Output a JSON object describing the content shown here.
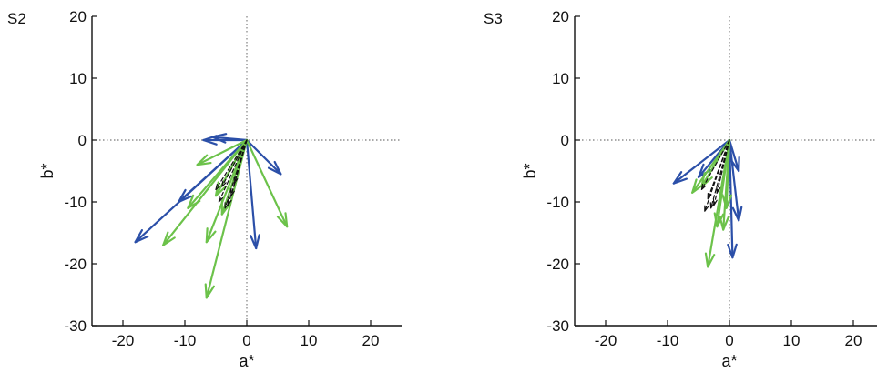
{
  "chart_data": [
    {
      "type": "vector",
      "panel_label": "S2",
      "xlabel": "a*",
      "ylabel": "b*",
      "xlim": [
        -25,
        25
      ],
      "ylim": [
        -30,
        20
      ],
      "xticks": [
        "-20",
        "-10",
        "0",
        "10",
        "20"
      ],
      "yticks": [
        "20",
        "10",
        "0",
        "-10",
        "-20",
        "-30"
      ],
      "reference_lines": {
        "x": 0,
        "y": 0,
        "style": "dotted"
      },
      "series": [
        {
          "color": "#2b4fa8",
          "style": "solid",
          "vectors": [
            [
              -18,
              -16.5
            ],
            [
              -11,
              -10
            ],
            [
              -7,
              0
            ],
            [
              1.5,
              -17.5
            ],
            [
              5.5,
              -5.5
            ],
            [
              -5.5,
              0.5
            ]
          ]
        },
        {
          "color": "#6cc24a",
          "style": "solid",
          "vectors": [
            [
              -13.5,
              -17
            ],
            [
              -9.5,
              -11
            ],
            [
              -6.5,
              -25.5
            ],
            [
              -6.5,
              -16.5
            ],
            [
              -4,
              -12
            ],
            [
              -8,
              -4
            ],
            [
              6.5,
              -14
            ],
            [
              -5,
              -9
            ]
          ]
        },
        {
          "color": "#111111",
          "style": "dashed",
          "vectors": [
            [
              -5,
              -8
            ],
            [
              -4.5,
              -10
            ],
            [
              -3.5,
              -11
            ],
            [
              -2.5,
              -9
            ],
            [
              -4,
              -7.5
            ],
            [
              -3,
              -10.5
            ],
            [
              -2,
              -7
            ]
          ]
        }
      ]
    },
    {
      "type": "vector",
      "panel_label": "S3",
      "xlabel": "a*",
      "ylabel": "b*",
      "xlim": [
        -25,
        25
      ],
      "ylim": [
        -30,
        20
      ],
      "xticks": [
        "-20",
        "-10",
        "0",
        "10",
        "20"
      ],
      "yticks": [
        "20",
        "10",
        "0",
        "-10",
        "-20",
        "-30"
      ],
      "reference_lines": {
        "x": 0,
        "y": 0,
        "style": "dotted"
      },
      "series": [
        {
          "color": "#2b4fa8",
          "style": "solid",
          "vectors": [
            [
              -9,
              -7
            ],
            [
              0.5,
              -19
            ],
            [
              1.5,
              -13
            ],
            [
              1.5,
              -5
            ],
            [
              -5,
              -6
            ]
          ]
        },
        {
          "color": "#6cc24a",
          "style": "solid",
          "vectors": [
            [
              -3.5,
              -20.5
            ],
            [
              -2,
              -14
            ],
            [
              -6,
              -8.5
            ],
            [
              -4.5,
              -7.5
            ],
            [
              -1,
              -14.5
            ],
            [
              -0.5,
              -11
            ]
          ]
        },
        {
          "color": "#111111",
          "style": "dashed",
          "vectors": [
            [
              -4,
              -11.5
            ],
            [
              -3.5,
              -9.5
            ],
            [
              -3,
              -11
            ],
            [
              -2,
              -8.5
            ],
            [
              -4.5,
              -8
            ],
            [
              -2.5,
              -10.5
            ]
          ]
        }
      ]
    }
  ]
}
